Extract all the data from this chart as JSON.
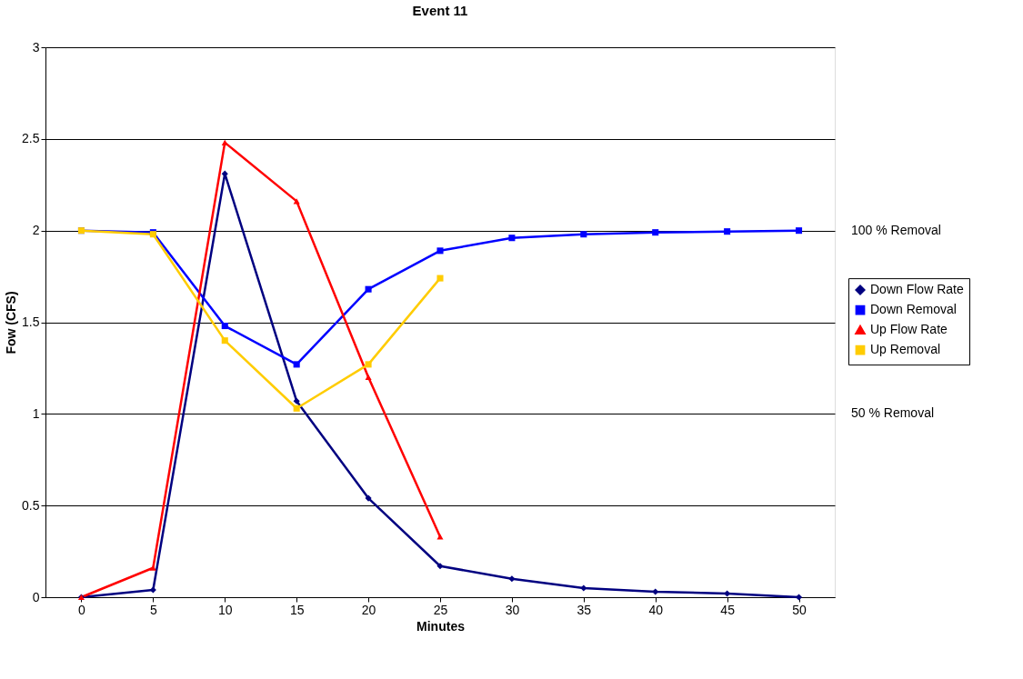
{
  "chart_data": {
    "type": "line",
    "title": "Event 11",
    "xlabel": "Minutes",
    "ylabel": "Fow (CFS)",
    "categories": [
      "0",
      "5",
      "10",
      "15",
      "20",
      "25",
      "30",
      "35",
      "40",
      "45",
      "50"
    ],
    "series": [
      {
        "name": "Down Flow Rate",
        "color": "#000080",
        "marker": "diamond",
        "values": [
          0,
          0.04,
          2.31,
          1.07,
          0.54,
          0.17,
          0.1,
          0.05,
          0.03,
          0.02,
          0.0
        ]
      },
      {
        "name": "Down Removal",
        "color": "#0000ff",
        "marker": "square",
        "values": [
          2.0,
          1.99,
          1.48,
          1.27,
          1.68,
          1.89,
          1.96,
          1.98,
          1.99,
          1.995,
          2.0
        ]
      },
      {
        "name": "Up Flow Rate",
        "color": "#ff0000",
        "marker": "triangle",
        "values": [
          0,
          0.16,
          2.48,
          2.16,
          1.2,
          0.33,
          null,
          null,
          null,
          null,
          null
        ]
      },
      {
        "name": "Up Removal",
        "color": "#ffcc00",
        "marker": "square",
        "values": [
          2.0,
          1.98,
          1.4,
          1.03,
          1.27,
          1.74,
          null,
          null,
          null,
          null,
          null
        ]
      }
    ],
    "ylim": [
      0,
      3
    ],
    "yticks": [
      0,
      0.5,
      1,
      1.5,
      2,
      2.5,
      3
    ],
    "grid": "y",
    "legend": "right",
    "annotations": [
      "100 % Removal",
      "50 % Removal"
    ]
  }
}
